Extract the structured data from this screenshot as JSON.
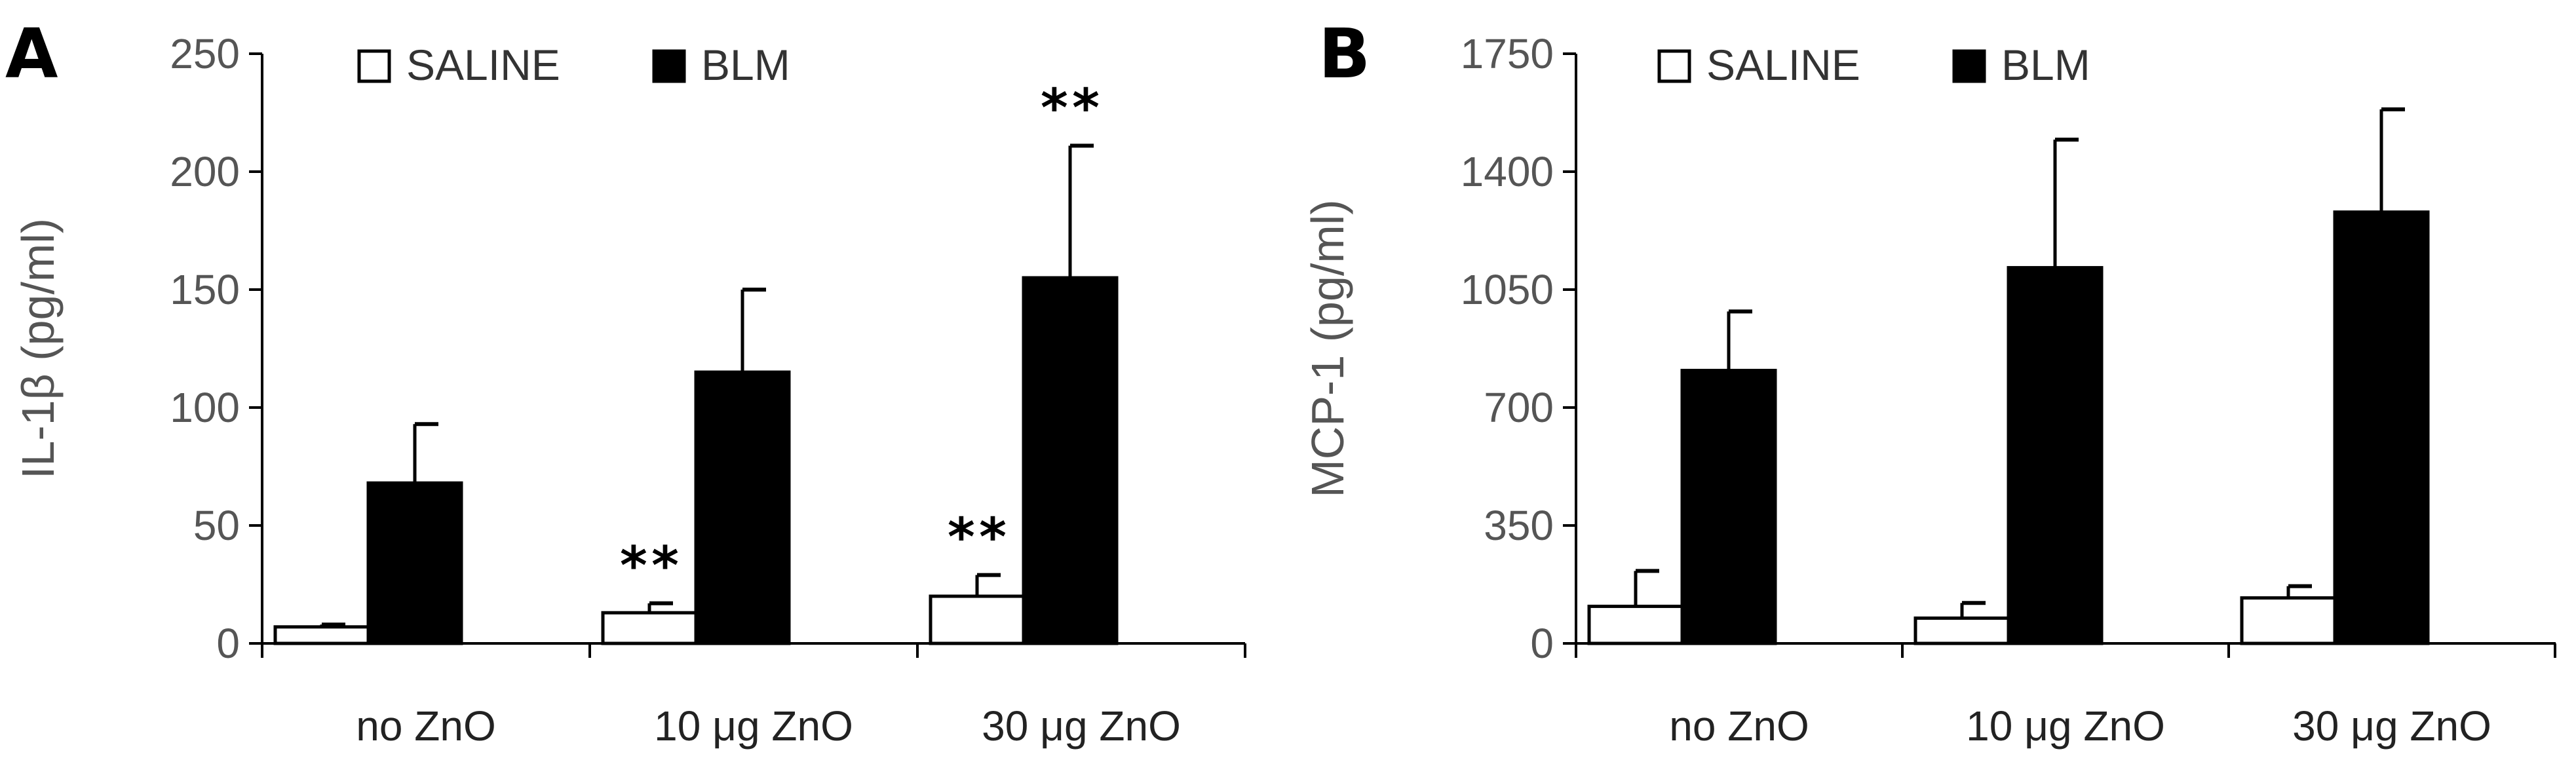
{
  "colors": {
    "saline_fill": "#ffffff",
    "blm_fill": "#000000",
    "bar_stroke": "#000000",
    "axis": "#000000"
  },
  "chart_data": [
    {
      "type": "bar",
      "panel": "A",
      "title": "",
      "xlabel": "",
      "ylabel": "IL-1β (pg/ml)",
      "ylim": [
        0,
        250
      ],
      "yticks": [
        "0",
        "50",
        "100",
        "150",
        "200",
        "250"
      ],
      "ytick_values": [
        0,
        50,
        100,
        150,
        200,
        250
      ],
      "categories": [
        "no ZnO",
        "10 μg ZnO",
        "30 μg ZnO"
      ],
      "legend": [
        "SALINE",
        "BLM"
      ],
      "legend_position": "top",
      "series": [
        {
          "name": "SALINE",
          "values": [
            7,
            13,
            20
          ],
          "errors": [
            1,
            4,
            9
          ],
          "significance": [
            "",
            "**",
            "**"
          ]
        },
        {
          "name": "BLM",
          "values": [
            68,
            115,
            155
          ],
          "errors": [
            25,
            35,
            56
          ],
          "significance": [
            "",
            "",
            "**"
          ]
        }
      ]
    },
    {
      "type": "bar",
      "panel": "B",
      "title": "",
      "xlabel": "",
      "ylabel": "MCP-1 (pg/ml)",
      "ylim": [
        0,
        1750
      ],
      "yticks": [
        "0",
        "350",
        "700",
        "1050",
        "1400",
        "1750"
      ],
      "ytick_values": [
        0,
        350,
        700,
        1050,
        1400,
        1750
      ],
      "categories": [
        "no ZnO",
        "10 μg ZnO",
        "30 μg ZnO"
      ],
      "legend": [
        "SALINE",
        "BLM"
      ],
      "legend_position": "top",
      "series": [
        {
          "name": "SALINE",
          "values": [
            110,
            75,
            135
          ],
          "errors": [
            105,
            45,
            35
          ],
          "significance": [
            "",
            "",
            ""
          ]
        },
        {
          "name": "BLM",
          "values": [
            810,
            1115,
            1280
          ],
          "errors": [
            175,
            380,
            305
          ],
          "significance": [
            "",
            "",
            ""
          ]
        }
      ]
    }
  ]
}
